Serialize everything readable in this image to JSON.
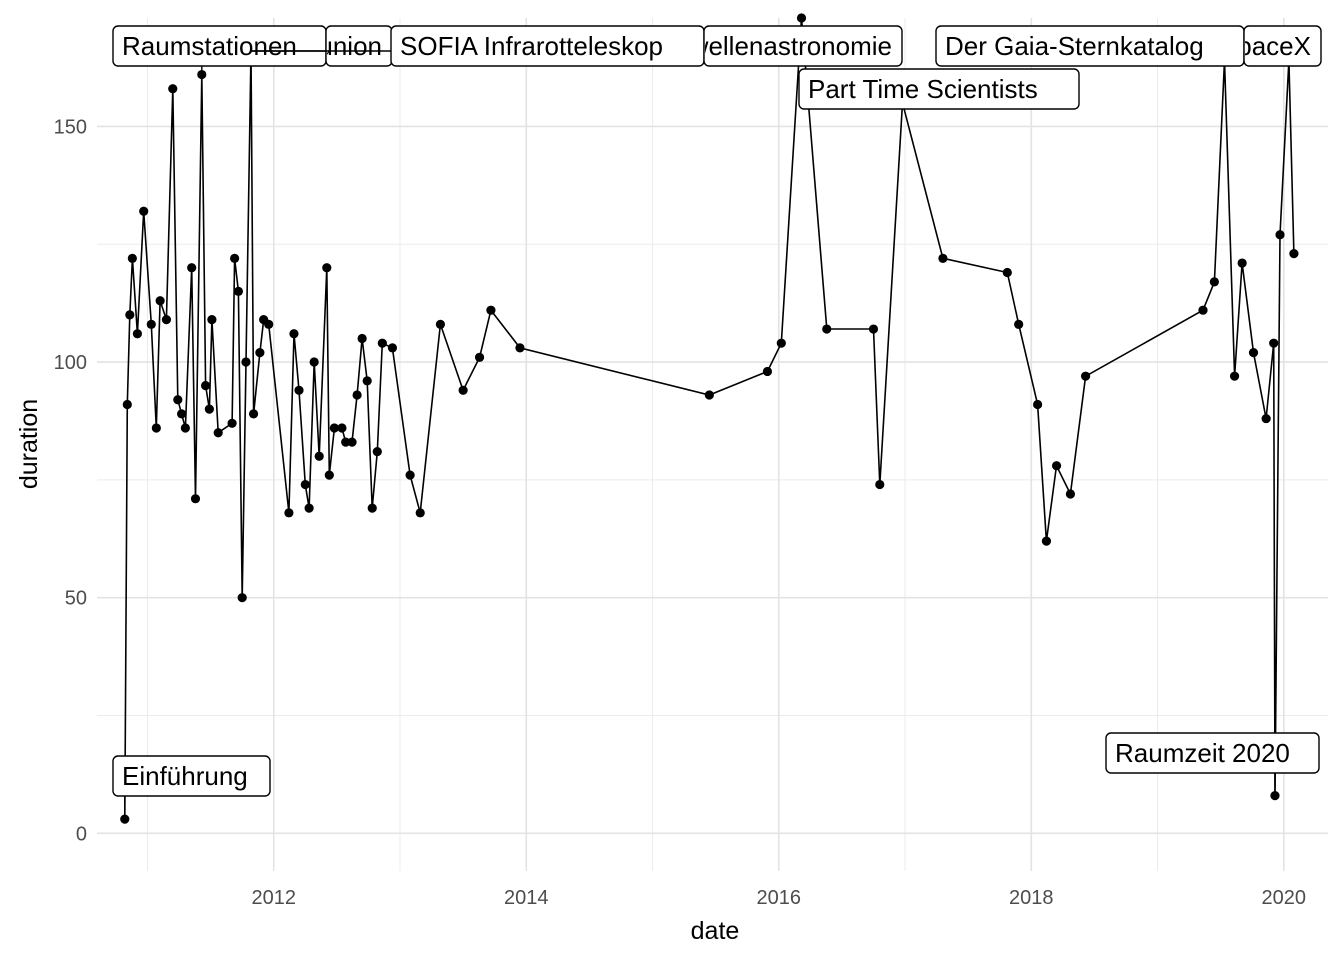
{
  "chart_data": {
    "type": "line",
    "title": "",
    "xlabel": "date",
    "ylabel": "duration",
    "grid": true,
    "legend": "none",
    "xlim": [
      2010.6,
      2020.35
    ],
    "ylim": [
      -8,
      173
    ],
    "x_ticks": [
      {
        "value": 2012,
        "label": "2012"
      },
      {
        "value": 2014,
        "label": "2014"
      },
      {
        "value": 2016,
        "label": "2016"
      },
      {
        "value": 2018,
        "label": "2018"
      },
      {
        "value": 2020,
        "label": "2020"
      }
    ],
    "y_ticks": [
      {
        "value": 0,
        "label": "0"
      },
      {
        "value": 50,
        "label": "50"
      },
      {
        "value": 100,
        "label": "100"
      },
      {
        "value": 150,
        "label": "150"
      }
    ],
    "series": [
      {
        "points": [
          [
            2010.82,
            3
          ],
          [
            2010.84,
            91
          ],
          [
            2010.86,
            110
          ],
          [
            2010.88,
            122
          ],
          [
            2010.92,
            106
          ],
          [
            2010.97,
            132
          ],
          [
            2011.03,
            108
          ],
          [
            2011.07,
            86
          ],
          [
            2011.1,
            113
          ],
          [
            2011.15,
            109
          ],
          [
            2011.2,
            158
          ],
          [
            2011.24,
            92
          ],
          [
            2011.27,
            89
          ],
          [
            2011.3,
            86
          ],
          [
            2011.35,
            120
          ],
          [
            2011.38,
            71
          ],
          [
            2011.43,
            161
          ],
          [
            2011.46,
            95
          ],
          [
            2011.49,
            90
          ],
          [
            2011.51,
            109
          ],
          [
            2011.56,
            85
          ],
          [
            2011.67,
            87
          ],
          [
            2011.69,
            122
          ],
          [
            2011.72,
            115
          ],
          [
            2011.75,
            50
          ],
          [
            2011.78,
            100
          ],
          [
            2011.82,
            166
          ],
          [
            2011.84,
            89
          ],
          [
            2011.89,
            102
          ],
          [
            2011.92,
            109
          ],
          [
            2011.96,
            108
          ],
          [
            2012.12,
            68
          ],
          [
            2012.16,
            106
          ],
          [
            2012.2,
            94
          ],
          [
            2012.25,
            74
          ],
          [
            2012.28,
            69
          ],
          [
            2012.32,
            100
          ],
          [
            2012.36,
            80
          ],
          [
            2012.42,
            120
          ],
          [
            2012.44,
            76
          ],
          [
            2012.48,
            86
          ],
          [
            2012.54,
            86
          ],
          [
            2012.57,
            83
          ],
          [
            2012.62,
            83
          ],
          [
            2012.66,
            93
          ],
          [
            2012.7,
            105
          ],
          [
            2012.74,
            96
          ],
          [
            2012.78,
            69
          ],
          [
            2012.82,
            81
          ],
          [
            2012.86,
            104
          ],
          [
            2012.94,
            103
          ],
          [
            2013.08,
            76
          ],
          [
            2013.16,
            68
          ],
          [
            2013.32,
            108
          ],
          [
            2013.5,
            94
          ],
          [
            2013.63,
            101
          ],
          [
            2013.72,
            111
          ],
          [
            2013.95,
            103
          ],
          [
            2015.45,
            93
          ],
          [
            2015.91,
            98
          ],
          [
            2016.02,
            104
          ],
          [
            2016.18,
            173
          ],
          [
            2016.38,
            107
          ],
          [
            2016.75,
            107
          ],
          [
            2016.8,
            74
          ],
          [
            2016.98,
            155
          ],
          [
            2017.3,
            122
          ],
          [
            2017.81,
            119
          ],
          [
            2017.9,
            108
          ],
          [
            2018.05,
            91
          ],
          [
            2018.12,
            62
          ],
          [
            2018.2,
            78
          ],
          [
            2018.31,
            72
          ],
          [
            2018.43,
            97
          ],
          [
            2019.36,
            111
          ],
          [
            2019.45,
            117
          ],
          [
            2019.53,
            164
          ],
          [
            2019.61,
            97
          ],
          [
            2019.67,
            121
          ],
          [
            2019.76,
            102
          ],
          [
            2019.86,
            88
          ],
          [
            2019.92,
            104
          ],
          [
            2019.93,
            8
          ],
          [
            2019.97,
            127
          ],
          [
            2020.04,
            164
          ],
          [
            2020.08,
            123
          ]
        ]
      }
    ],
    "annotations": [
      {
        "label": "Raumstationen",
        "x": 2011.43,
        "y": 161,
        "clip": false
      },
      {
        "label": "Raumfahrt in Sowjetunion",
        "x": 2011.82,
        "y": 166,
        "clip": true
      },
      {
        "label": "SOFIA Infrarotteleskop",
        "x": 2011.82,
        "y": 166,
        "clip": false
      },
      {
        "label": "Schwerewellenastronomie",
        "x": 2016.18,
        "y": 173,
        "clip": true
      },
      {
        "label": "Part Time Scientists",
        "x": 2016.98,
        "y": 155,
        "clip": false
      },
      {
        "label": "Der Gaia-Sternkatalog",
        "x": 2019.53,
        "y": 164,
        "clip": false
      },
      {
        "label": "SpaceX",
        "x": 2020.04,
        "y": 164,
        "clip": true
      },
      {
        "label": "Einführung",
        "x": 2010.82,
        "y": 3,
        "clip": false
      },
      {
        "label": "Raumzeit 2020",
        "x": 2019.93,
        "y": 8,
        "clip": false
      }
    ]
  }
}
